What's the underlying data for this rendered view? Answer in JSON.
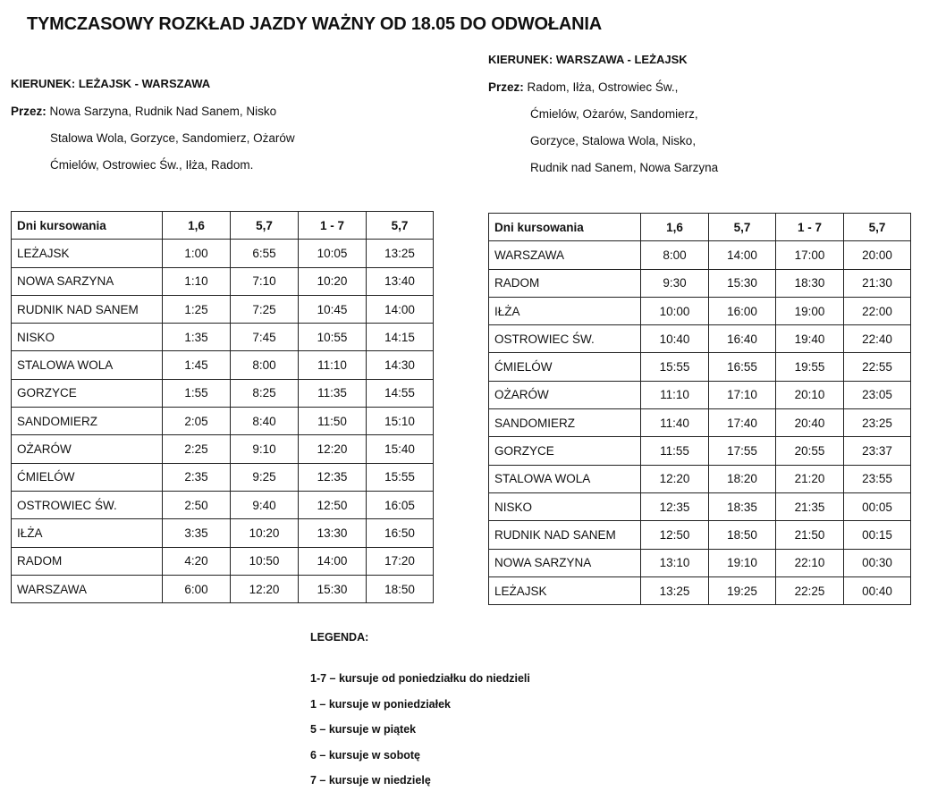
{
  "title": "TYMCZASOWY ROZKŁAD JAZDY WAŻNY OD 18.05 DO ODWOŁANIA",
  "left": {
    "direction": "KIERUNEK: LEŻAJSK - WARSZAWA",
    "via_label": "Przez:",
    "via_lines": [
      "Nowa Sarzyna, Rudnik Nad Sanem, Nisko",
      "Stalowa Wola, Gorzyce, Sandomierz, Ożarów",
      "Ćmielów, Ostrowiec Św., Iłża, Radom."
    ],
    "headers": [
      "Dni kursowania",
      "1,6",
      "5,7",
      "1 - 7",
      "5,7"
    ],
    "rows": [
      [
        "LEŻAJSK",
        "1:00",
        "6:55",
        "10:05",
        "13:25"
      ],
      [
        "NOWA SARZYNA",
        "1:10",
        "7:10",
        "10:20",
        "13:40"
      ],
      [
        "RUDNIK NAD SANEM",
        "1:25",
        "7:25",
        "10:45",
        "14:00"
      ],
      [
        "NISKO",
        "1:35",
        "7:45",
        "10:55",
        "14:15"
      ],
      [
        "STALOWA WOLA",
        "1:45",
        "8:00",
        "11:10",
        "14:30"
      ],
      [
        "GORZYCE",
        "1:55",
        "8:25",
        "11:35",
        "14:55"
      ],
      [
        "SANDOMIERZ",
        "2:05",
        "8:40",
        "11:50",
        "15:10"
      ],
      [
        "OŻARÓW",
        "2:25",
        "9:10",
        "12:20",
        "15:40"
      ],
      [
        "ĆMIELÓW",
        "2:35",
        "9:25",
        "12:35",
        "15:55"
      ],
      [
        "OSTROWIEC ŚW.",
        "2:50",
        "9:40",
        "12:50",
        "16:05"
      ],
      [
        "IŁŻA",
        "3:35",
        "10:20",
        "13:30",
        "16:50"
      ],
      [
        "RADOM",
        "4:20",
        "10:50",
        "14:00",
        "17:20"
      ],
      [
        "WARSZAWA",
        "6:00",
        "12:20",
        "15:30",
        "18:50"
      ]
    ]
  },
  "right": {
    "direction": "KIERUNEK: WARSZAWA - LEŻAJSK",
    "via_label": "Przez:",
    "via_lines": [
      "Radom, Iłża, Ostrowiec Św.,",
      "Ćmielów, Ożarów, Sandomierz,",
      "Gorzyce, Stalowa Wola, Nisko,",
      "Rudnik nad Sanem, Nowa Sarzyna"
    ],
    "headers": [
      "Dni kursowania",
      "1,6",
      "5,7",
      "1 - 7",
      "5,7"
    ],
    "rows": [
      [
        "WARSZAWA",
        "8:00",
        "14:00",
        "17:00",
        "20:00"
      ],
      [
        "RADOM",
        "9:30",
        "15:30",
        "18:30",
        "21:30"
      ],
      [
        "IŁŻA",
        "10:00",
        "16:00",
        "19:00",
        "22:00"
      ],
      [
        "OSTROWIEC ŚW.",
        "10:40",
        "16:40",
        "19:40",
        "22:40"
      ],
      [
        "ĆMIELÓW",
        "15:55",
        "16:55",
        "19:55",
        "22:55"
      ],
      [
        "OŻARÓW",
        "11:10",
        "17:10",
        "20:10",
        "23:05"
      ],
      [
        "SANDOMIERZ",
        "11:40",
        "17:40",
        "20:40",
        "23:25"
      ],
      [
        "GORZYCE",
        "11:55",
        "17:55",
        "20:55",
        "23:37"
      ],
      [
        "STALOWA WOLA",
        "12:20",
        "18:20",
        "21:20",
        "23:55"
      ],
      [
        "NISKO",
        "12:35",
        "18:35",
        "21:35",
        "00:05"
      ],
      [
        "RUDNIK NAD SANEM",
        "12:50",
        "18:50",
        "21:50",
        "00:15"
      ],
      [
        "NOWA SARZYNA",
        "13:10",
        "19:10",
        "22:10",
        "00:30"
      ],
      [
        "LEŻAJSK",
        "13:25",
        "19:25",
        "22:25",
        "00:40"
      ]
    ]
  },
  "legend": {
    "title": "LEGENDA:",
    "items": [
      "1-7 – kursuje od poniedziałku do niedzieli",
      "1 – kursuje w poniedziałek",
      "5 – kursuje w piątek",
      "6 – kursuje w sobotę",
      "7 – kursuje w niedzielę"
    ]
  }
}
